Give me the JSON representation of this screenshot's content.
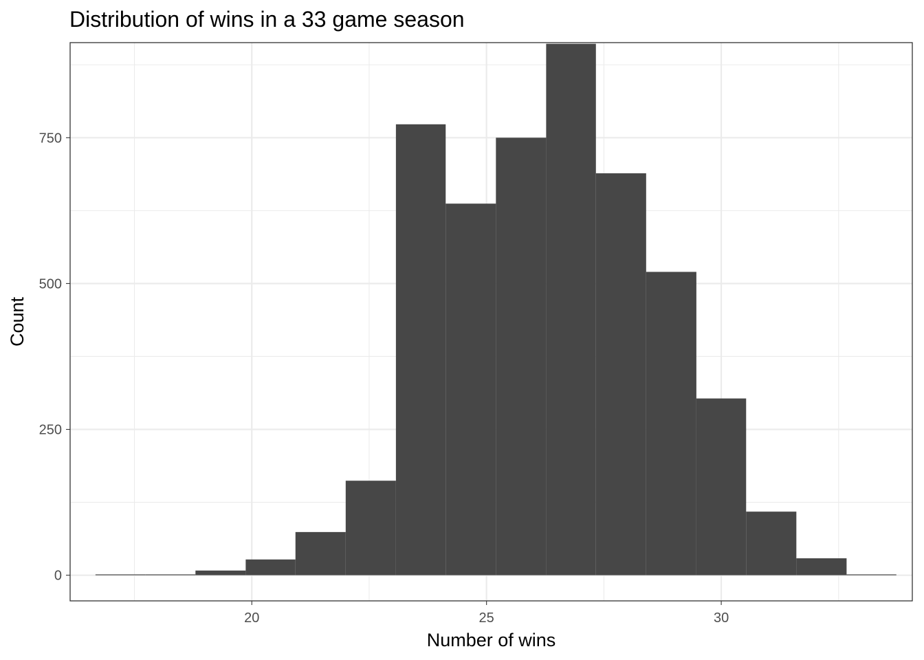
{
  "chart_data": {
    "type": "bar",
    "title": "Distribution of wins in a 33 game season",
    "xlabel": "Number of wins",
    "ylabel": "Count",
    "xlim": [
      16.13,
      34.07
    ],
    "ylim": [
      -44,
      913
    ],
    "x_ticks": [
      20,
      25,
      30
    ],
    "x_minor_ticks": [
      17.5,
      22.5,
      27.5,
      32.5
    ],
    "y_ticks": [
      0,
      250,
      500,
      750
    ],
    "y_minor_ticks": [
      125,
      375,
      625,
      875
    ],
    "bin_width": 1.0667,
    "grid": true,
    "legend": "none",
    "bar_color": "#474747",
    "bins": [
      {
        "x0": 16.67,
        "x1": 17.73,
        "count": 1
      },
      {
        "x0": 17.73,
        "x1": 18.8,
        "count": 1
      },
      {
        "x0": 18.8,
        "x1": 19.87,
        "count": 8
      },
      {
        "x0": 19.87,
        "x1": 20.93,
        "count": 27
      },
      {
        "x0": 20.93,
        "x1": 22.0,
        "count": 74
      },
      {
        "x0": 22.0,
        "x1": 23.07,
        "count": 162
      },
      {
        "x0": 23.07,
        "x1": 24.13,
        "count": 773
      },
      {
        "x0": 24.13,
        "x1": 25.2,
        "count": 637
      },
      {
        "x0": 25.2,
        "x1": 26.27,
        "count": 750
      },
      {
        "x0": 26.27,
        "x1": 27.33,
        "count": 911
      },
      {
        "x0": 27.33,
        "x1": 28.4,
        "count": 689
      },
      {
        "x0": 28.4,
        "x1": 29.47,
        "count": 520
      },
      {
        "x0": 29.47,
        "x1": 30.53,
        "count": 303
      },
      {
        "x0": 30.53,
        "x1": 31.6,
        "count": 109
      },
      {
        "x0": 31.6,
        "x1": 32.67,
        "count": 29
      },
      {
        "x0": 32.67,
        "x1": 33.73,
        "count": 1
      }
    ]
  }
}
